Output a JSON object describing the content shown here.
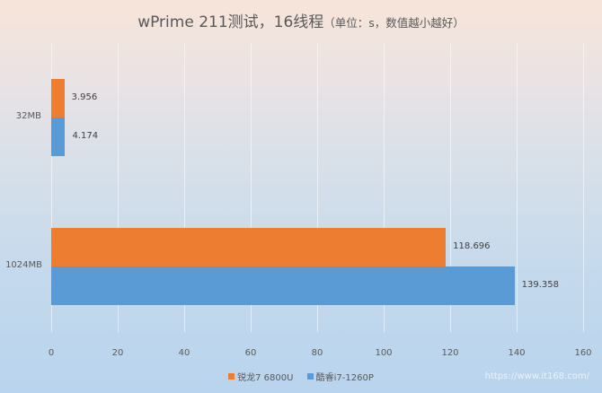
{
  "title": {
    "main": "wPrime 211测试，16线程",
    "sub": "（单位：s，数值越小越好）"
  },
  "colors": {
    "series1": "#ed7d31",
    "series2": "#5b9bd5"
  },
  "legend": [
    {
      "name": "锐龙7 6800U",
      "color": "#ed7d31"
    },
    {
      "name": "酷睿i7-1260P",
      "color": "#5b9bd5"
    }
  ],
  "x_ticks": [
    "0",
    "20",
    "40",
    "60",
    "80",
    "100",
    "120",
    "140",
    "160"
  ],
  "categories": [
    "32MB",
    "1024MB"
  ],
  "watermark": "https://www.it168.com/",
  "chart_data": {
    "type": "bar",
    "orientation": "horizontal",
    "title": "wPrime 211测试，16线程（单位：s，数值越小越好）",
    "categories": [
      "32MB",
      "1024MB"
    ],
    "series": [
      {
        "name": "锐龙7 6800U",
        "values": [
          3.956,
          118.696
        ],
        "color": "#ed7d31"
      },
      {
        "name": "酷睿i7-1260P",
        "values": [
          4.174,
          139.358
        ],
        "color": "#5b9bd5"
      }
    ],
    "xlabel": "",
    "ylabel": "",
    "xlim": [
      0,
      160
    ],
    "x_ticks": [
      0,
      20,
      40,
      60,
      80,
      100,
      120,
      140,
      160
    ],
    "grid": true,
    "legend_position": "bottom",
    "data_labels": true
  }
}
